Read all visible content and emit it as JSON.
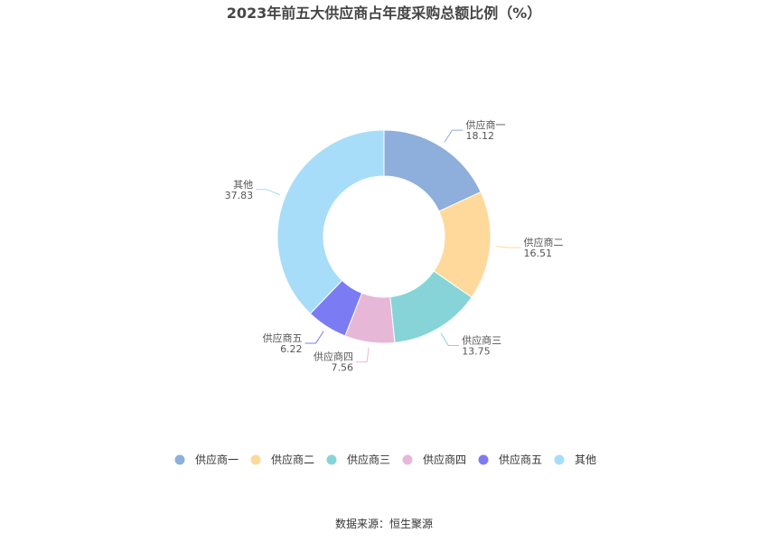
{
  "chart_data": {
    "type": "pie",
    "subtype": "donut",
    "title": "2023年前五大供应商占年度采购总额比例（%）",
    "categories": [
      "供应商一",
      "供应商二",
      "供应商三",
      "供应商四",
      "供应商五",
      "其他"
    ],
    "values": [
      18.12,
      16.51,
      13.75,
      7.56,
      6.22,
      37.83
    ],
    "value_labels": [
      "18.12",
      "16.51",
      "13.75",
      "7.56",
      "6.22",
      "37.83"
    ],
    "colors": [
      "#8eaedb",
      "#fed99b",
      "#86d4d8",
      "#e7b7d8",
      "#7b7cf3",
      "#a7ddf8"
    ],
    "legend_position": "bottom",
    "source": "数据来源：恒生聚源"
  }
}
